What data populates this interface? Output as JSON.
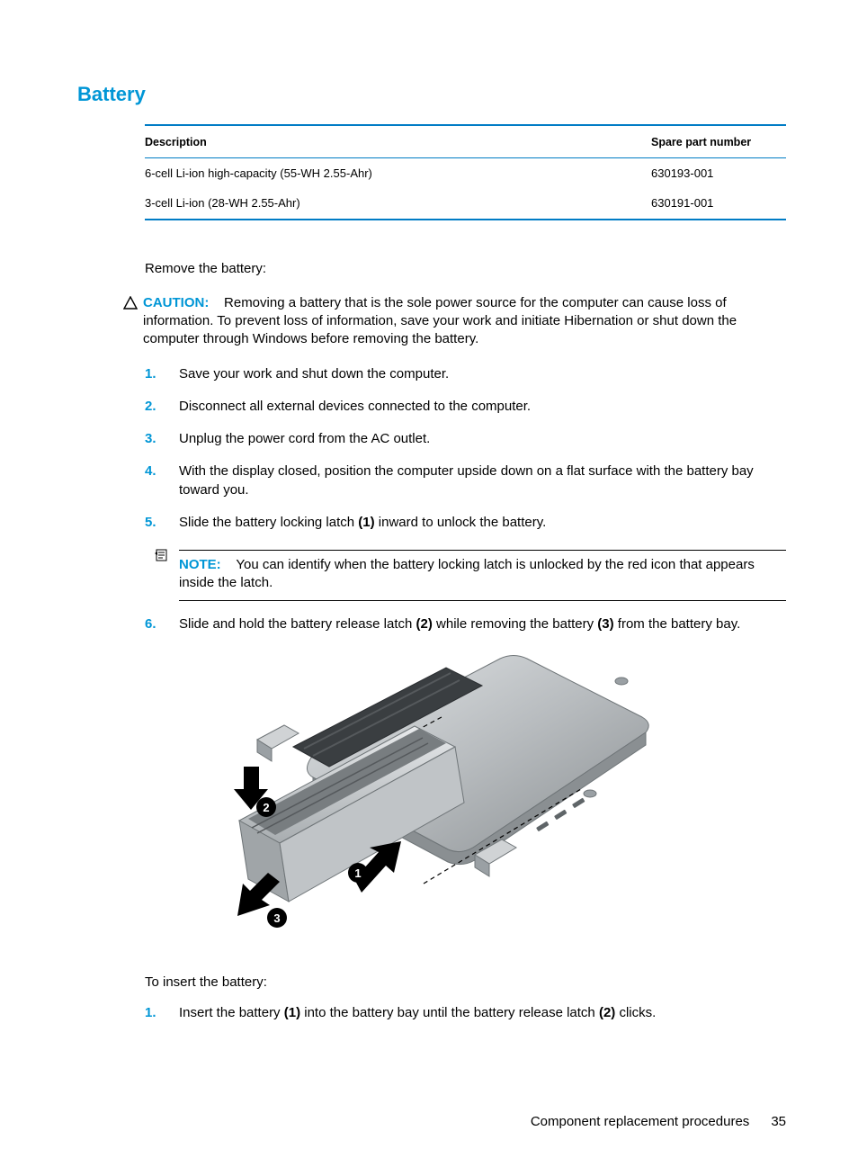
{
  "title": "Battery",
  "accent_color": "#0096d6",
  "rule_color": "#007cc5",
  "table": {
    "columns": [
      "Description",
      "Spare part number"
    ],
    "rows": [
      {
        "desc": "6-cell Li-ion high-capacity (55-WH 2.55-Ahr)",
        "spn": "630193-001"
      },
      {
        "desc": "3-cell Li-ion (28-WH 2.55-Ahr)",
        "spn": "630191-001"
      }
    ]
  },
  "remove_intro": "Remove the battery:",
  "caution": {
    "label": "CAUTION:",
    "text": "Removing a battery that is the sole power source for the computer can cause loss of information. To prevent loss of information, save your work and initiate Hibernation or shut down the computer through Windows before removing the battery."
  },
  "remove_steps": [
    {
      "n": "1.",
      "html": "Save your work and shut down the computer."
    },
    {
      "n": "2.",
      "html": "Disconnect all external devices connected to the computer."
    },
    {
      "n": "3.",
      "html": "Unplug the power cord from the AC outlet."
    },
    {
      "n": "4.",
      "html": "With the display closed, position the computer upside down on a flat surface with the battery bay toward you."
    },
    {
      "n": "5.",
      "html": "Slide the battery locking latch <b>(1)</b> inward to unlock the battery."
    }
  ],
  "note": {
    "label": "NOTE:",
    "text": "You can identify when the battery locking latch is unlocked by the red icon that appears inside the latch."
  },
  "remove_step6": {
    "n": "6.",
    "html": "Slide and hold the battery release latch <b>(2)</b> while removing the battery <b>(3)</b> from the battery bay."
  },
  "figure": {
    "callouts": [
      "1",
      "2",
      "3"
    ],
    "colors": {
      "body": "#b8bcbf",
      "body_light": "#d6d9db",
      "body_dark": "#8a8f92",
      "battery": "#c8cccf",
      "arrow": "#000000",
      "screw": "#9aa0a4"
    }
  },
  "insert_intro": "To insert the battery:",
  "insert_steps": [
    {
      "n": "1.",
      "html": "Insert the battery <b>(1)</b> into the battery bay until the battery release latch <b>(2)</b> clicks."
    }
  ],
  "footer": {
    "section": "Component replacement procedures",
    "page": "35"
  }
}
